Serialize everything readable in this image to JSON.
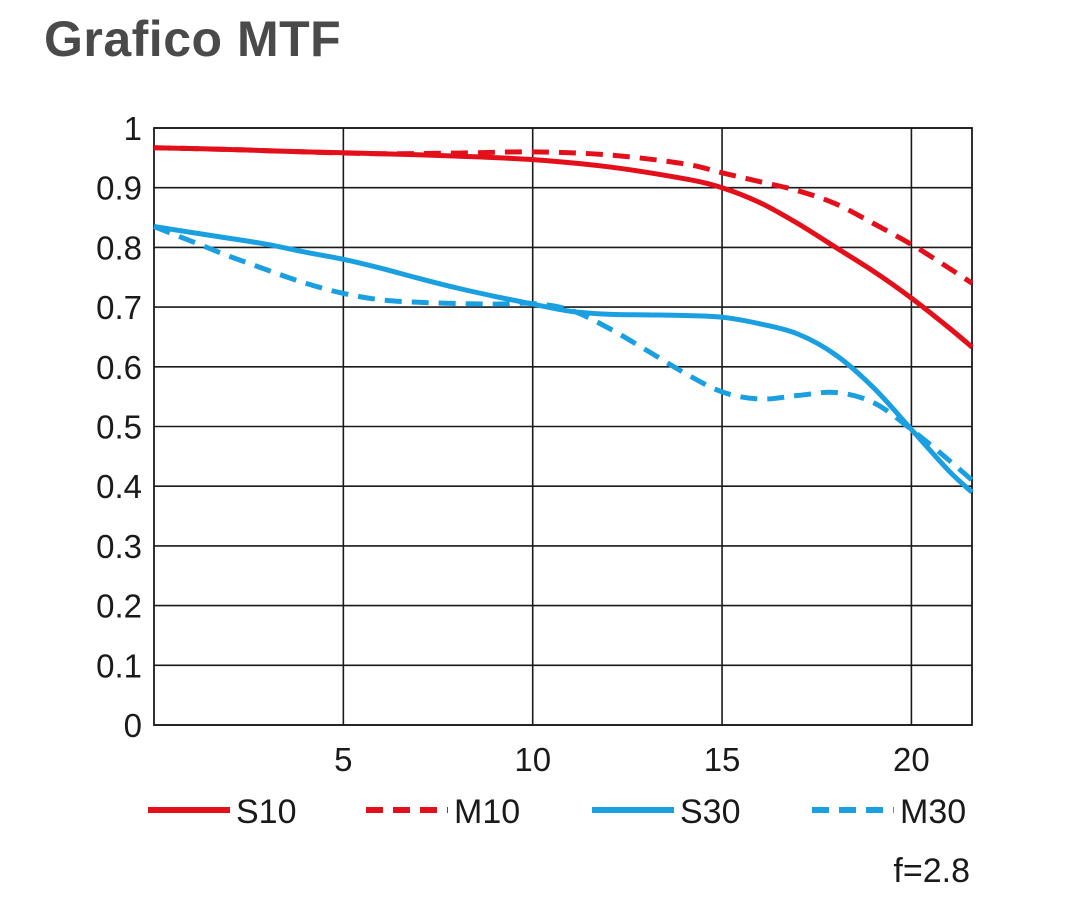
{
  "title": "Grafico MTF",
  "aperture_label": "f=2.8",
  "colors": {
    "red": "#e3101b",
    "blue": "#1aa0e0",
    "grid": "#1a1a1a"
  },
  "chart_data": {
    "type": "line",
    "title": "Grafico MTF",
    "xlabel": "",
    "ylabel": "",
    "xlim": [
      0,
      21.6
    ],
    "ylim": [
      0,
      1
    ],
    "x_ticks": [
      5,
      10,
      15,
      20
    ],
    "y_ticks": [
      "0",
      "0.1",
      "0.2",
      "0.3",
      "0.4",
      "0.5",
      "0.6",
      "0.7",
      "0.8",
      "0.9",
      "1"
    ],
    "grid": true,
    "legend_position": "bottom",
    "series": [
      {
        "name": "S10",
        "color": "#e3101b",
        "dash": false,
        "x": [
          0,
          2,
          4,
          6,
          8,
          10,
          12,
          14,
          15,
          16,
          17,
          18,
          19,
          20,
          21,
          21.6
        ],
        "y": [
          0.967,
          0.964,
          0.96,
          0.957,
          0.953,
          0.947,
          0.935,
          0.915,
          0.9,
          0.875,
          0.84,
          0.8,
          0.76,
          0.715,
          0.665,
          0.633
        ]
      },
      {
        "name": "M10",
        "color": "#e3101b",
        "dash": true,
        "x": [
          0,
          2,
          4,
          6,
          8,
          10,
          12,
          14,
          15,
          16,
          17,
          18,
          19,
          20,
          21,
          21.6
        ],
        "y": [
          0.967,
          0.964,
          0.96,
          0.957,
          0.958,
          0.96,
          0.955,
          0.94,
          0.925,
          0.91,
          0.895,
          0.873,
          0.84,
          0.805,
          0.765,
          0.74
        ]
      },
      {
        "name": "S30",
        "color": "#1aa0e0",
        "dash": false,
        "x": [
          0,
          1,
          2,
          3,
          4,
          5,
          6,
          7,
          8,
          9,
          10,
          11,
          12,
          13,
          14,
          15,
          16,
          17,
          18,
          19,
          20,
          21,
          21.6
        ],
        "y": [
          0.835,
          0.825,
          0.815,
          0.805,
          0.792,
          0.78,
          0.765,
          0.748,
          0.732,
          0.718,
          0.705,
          0.693,
          0.688,
          0.687,
          0.686,
          0.683,
          0.672,
          0.655,
          0.62,
          0.565,
          0.495,
          0.425,
          0.39
        ]
      },
      {
        "name": "M30",
        "color": "#1aa0e0",
        "dash": true,
        "x": [
          0,
          1,
          2,
          3,
          4,
          5,
          6,
          7,
          8,
          9,
          10,
          11,
          12,
          13,
          14,
          15,
          16,
          17,
          18,
          19,
          20,
          21,
          21.6
        ],
        "y": [
          0.835,
          0.81,
          0.785,
          0.762,
          0.74,
          0.723,
          0.712,
          0.708,
          0.706,
          0.705,
          0.706,
          0.695,
          0.665,
          0.628,
          0.59,
          0.558,
          0.546,
          0.552,
          0.557,
          0.54,
          0.495,
          0.443,
          0.41
        ]
      }
    ]
  }
}
